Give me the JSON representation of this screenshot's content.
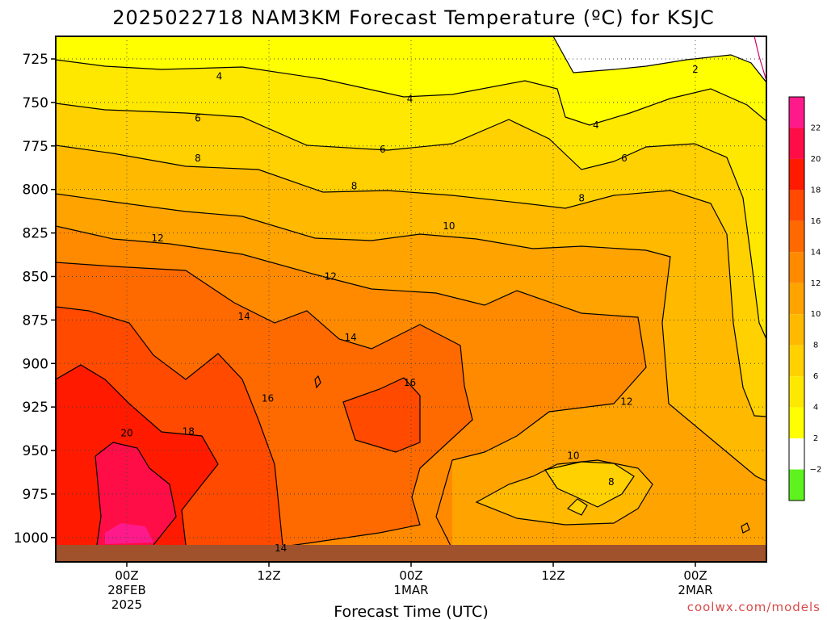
{
  "chart_data": {
    "type": "heatmap",
    "title": "2025022718 NAM3KM Forecast Temperature (ºC) for KSJC",
    "xlabel": "Forecast Time (UTC)",
    "ylabel": "",
    "y_axis": {
      "ticks": [
        725,
        750,
        775,
        800,
        825,
        850,
        875,
        900,
        925,
        950,
        975,
        1000
      ],
      "range": [
        1014,
        712
      ],
      "unit": "hPa"
    },
    "x_axis": {
      "range_hours": [
        -6,
        54
      ],
      "ticks": [
        {
          "hour": 0,
          "label": "00Z",
          "line2": "28FEB",
          "line3": "2025"
        },
        {
          "hour": 12,
          "label": "12Z",
          "line2": "",
          "line3": ""
        },
        {
          "hour": 24,
          "label": "00Z",
          "line2": "1MAR",
          "line3": ""
        },
        {
          "hour": 36,
          "label": "12Z",
          "line2": "",
          "line3": ""
        },
        {
          "hour": 48,
          "label": "00Z",
          "line2": "2MAR",
          "line3": ""
        }
      ]
    },
    "grid": true,
    "colorbar": {
      "labels": [
        "22",
        "20",
        "18",
        "16",
        "14",
        "12",
        "10",
        "8",
        "6",
        "4",
        "2",
        "−2"
      ],
      "colors": [
        "#ff1a8c",
        "#ff0d47",
        "#ff1a00",
        "#ff4a00",
        "#ff6a00",
        "#ff8a00",
        "#ffa300",
        "#ffba00",
        "#ffd100",
        "#ffe800",
        "#ffff00",
        "#ffffff",
        "#5ef21e"
      ]
    },
    "contour_labels": [
      {
        "text": "2",
        "hour": 48.0,
        "p": 731
      },
      {
        "text": "4",
        "hour": 7.8,
        "p": 735
      },
      {
        "text": "4",
        "hour": 23.9,
        "p": 748
      },
      {
        "text": "4",
        "hour": 39.6,
        "p": 763
      },
      {
        "text": "6",
        "hour": 6.0,
        "p": 759
      },
      {
        "text": "6",
        "hour": 21.6,
        "p": 777
      },
      {
        "text": "6",
        "hour": 42.0,
        "p": 782
      },
      {
        "text": "8",
        "hour": 6.0,
        "p": 782
      },
      {
        "text": "8",
        "hour": 19.2,
        "p": 798
      },
      {
        "text": "8",
        "hour": 38.4,
        "p": 805
      },
      {
        "text": "8",
        "hour": 40.9,
        "p": 968
      },
      {
        "text": "10",
        "hour": 27.2,
        "p": 821
      },
      {
        "text": "10",
        "hour": 37.7,
        "p": 953
      },
      {
        "text": "12",
        "hour": 2.6,
        "p": 828
      },
      {
        "text": "12",
        "hour": 17.2,
        "p": 850
      },
      {
        "text": "12",
        "hour": 42.2,
        "p": 922
      },
      {
        "text": "14",
        "hour": 9.9,
        "p": 873
      },
      {
        "text": "14",
        "hour": 18.9,
        "p": 885
      },
      {
        "text": "14",
        "hour": 13.0,
        "p": 1006
      },
      {
        "text": "16",
        "hour": 11.9,
        "p": 920
      },
      {
        "text": "16",
        "hour": 23.9,
        "p": 911
      },
      {
        "text": "18",
        "hour": 5.2,
        "p": 939
      },
      {
        "text": "20",
        "hour": 0.0,
        "p": 940
      }
    ],
    "colors": {
      "ground": "#a0522d",
      "frame": "#000000"
    },
    "credit": "coolwx.com/models"
  }
}
